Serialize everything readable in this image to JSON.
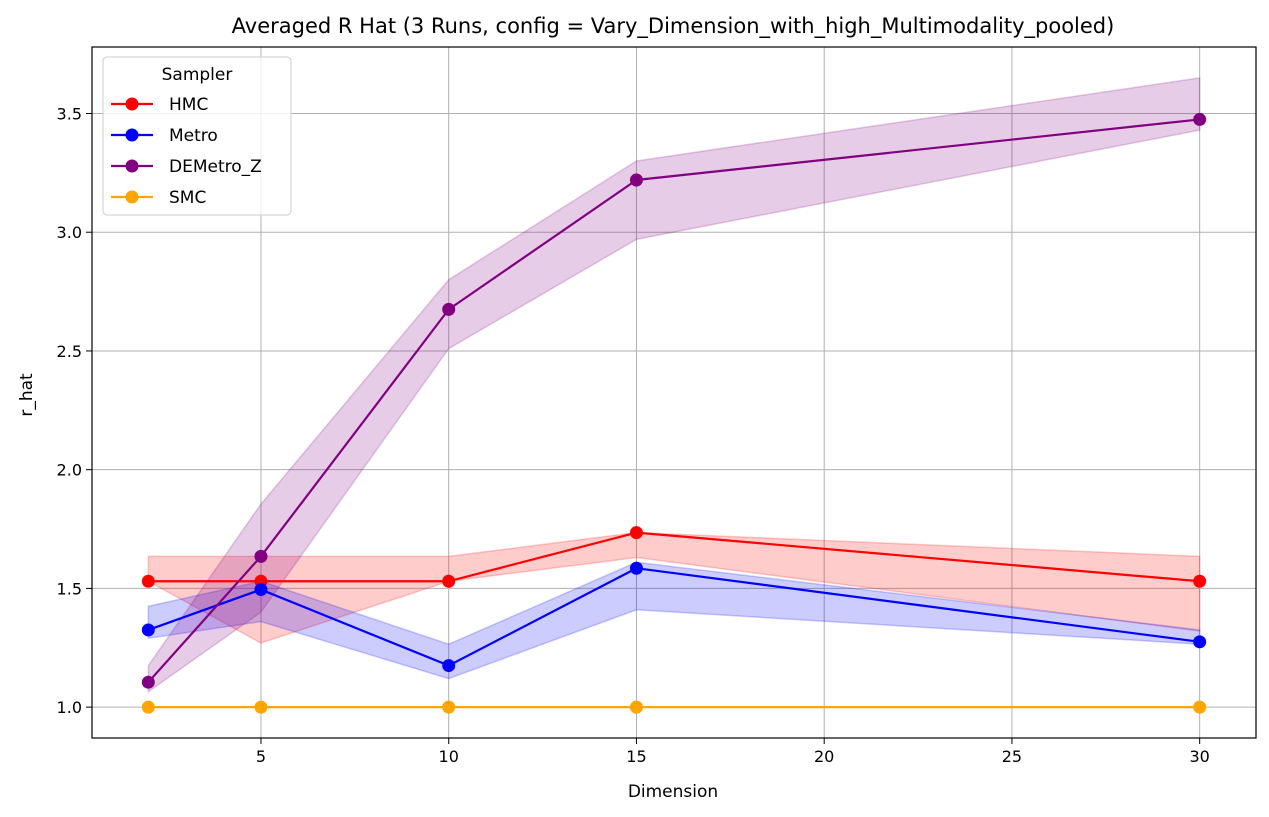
{
  "chart_data": {
    "type": "line",
    "title": "Averaged R Hat (3 Runs, config = Vary_Dimension_with_high_Multimodality_pooled)",
    "xlabel": "Dimension",
    "ylabel": "r_hat",
    "x": [
      2,
      5,
      10,
      15,
      30
    ],
    "xlim": [
      0.5,
      31.5
    ],
    "ylim": [
      0.87,
      3.78
    ],
    "xticks": [
      5,
      10,
      15,
      20,
      25,
      30
    ],
    "yticks": [
      1.0,
      1.5,
      2.0,
      2.5,
      3.0,
      3.5
    ],
    "ytick_labels": [
      "1.0",
      "1.5",
      "2.0",
      "2.5",
      "3.0",
      "3.5"
    ],
    "grid": true,
    "legend": {
      "title": "Sampler",
      "position": "upper-left"
    },
    "series": [
      {
        "name": "HMC",
        "color": "#ff0000",
        "fill": "#ff0000",
        "values": [
          1.53,
          1.53,
          1.53,
          1.735,
          1.53
        ],
        "lower": [
          1.53,
          1.27,
          1.53,
          1.63,
          1.32
        ],
        "upper": [
          1.635,
          1.635,
          1.635,
          1.735,
          1.635
        ]
      },
      {
        "name": "Metro",
        "color": "#0000ff",
        "fill": "#0000ff",
        "values": [
          1.325,
          1.495,
          1.175,
          1.585,
          1.275
        ],
        "lower": [
          1.29,
          1.36,
          1.12,
          1.41,
          1.265
        ],
        "upper": [
          1.425,
          1.53,
          1.265,
          1.61,
          1.325
        ]
      },
      {
        "name": "DEMetro_Z",
        "color": "#800080",
        "fill": "#800080",
        "values": [
          1.105,
          1.635,
          2.675,
          3.22,
          3.475
        ],
        "lower": [
          1.065,
          1.4,
          2.51,
          2.97,
          3.43
        ],
        "upper": [
          1.175,
          1.855,
          2.8,
          3.3,
          3.65
        ]
      },
      {
        "name": "SMC",
        "color": "#ffa500",
        "fill": "#ffa500",
        "values": [
          1.0,
          1.0,
          1.0,
          1.0,
          1.0
        ],
        "lower": [
          1.0,
          1.0,
          1.0,
          1.0,
          1.0
        ],
        "upper": [
          1.0,
          1.0,
          1.0,
          1.0,
          1.0
        ]
      }
    ]
  }
}
